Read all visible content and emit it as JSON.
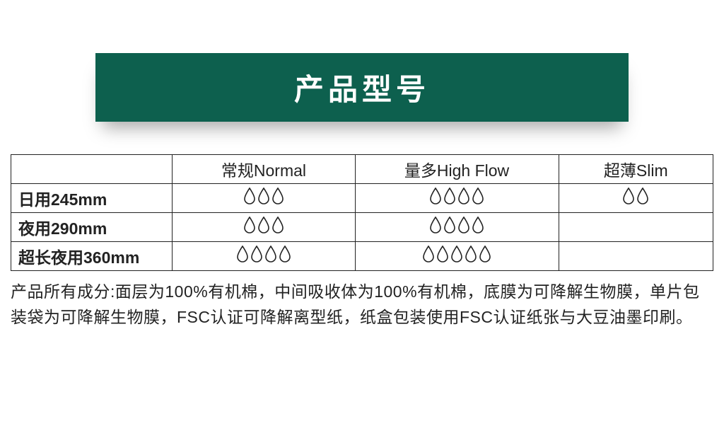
{
  "banner": {
    "title": "产品型号"
  },
  "table": {
    "columns": [
      "",
      "常规Normal",
      "量多High Flow",
      "超薄Slim"
    ],
    "rows": [
      {
        "label": "日用245mm",
        "drops": [
          3,
          4,
          2
        ]
      },
      {
        "label": "夜用290mm",
        "drops": [
          3,
          4,
          null
        ]
      },
      {
        "label": "超长夜用360mm",
        "drops": [
          4,
          5,
          null
        ]
      }
    ]
  },
  "description": "产品所有成分:面层为100%有机棉，中间吸收体为100%有机棉，底膜为可降解生物膜，单片包装袋为可降解生物膜，FSC认证可降解离型纸，纸盒包装使用FSC认证纸张与大豆油墨印刷。",
  "style": {
    "banner_bg": "#0d604e",
    "banner_text": "#ffffff",
    "banner_fontsize": 42,
    "border_color": "#222222",
    "cell_font_color": "#222222",
    "cell_fontsize": 23,
    "drop_stroke": "#222222",
    "drop_fill": "none",
    "drop_size": 24,
    "desc_fontsize": 23,
    "desc_color": "#222222",
    "background": "#ffffff"
  }
}
